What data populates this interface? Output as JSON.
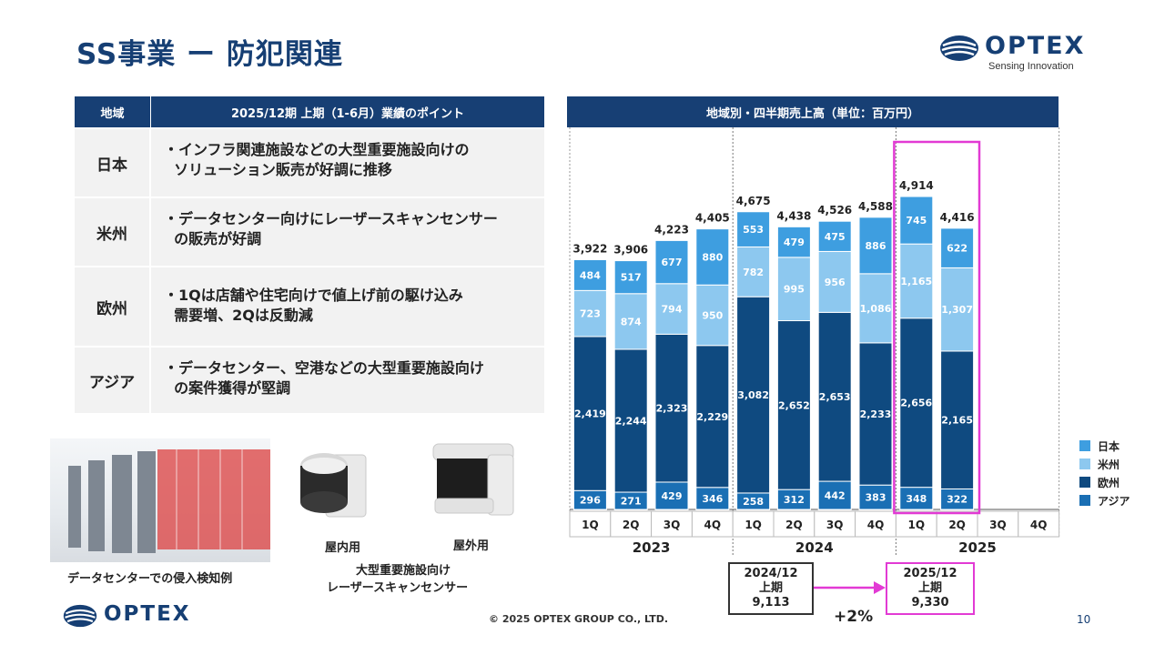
{
  "title": "SS事業 ー 防犯関連",
  "logo": {
    "word": "OPTEX",
    "tagline": "Sensing Innovation"
  },
  "table": {
    "header_region": "地域",
    "header_points": "2025/12期 上期（1-6月）業績のポイント",
    "rows": [
      {
        "region": "日本",
        "point": "・インフラ関連施設などの大型重要施設向けの\n  ソリューション販売が好調に推移"
      },
      {
        "region": "米州",
        "point": "・データセンター向けにレーザースキャンセンサー\n  の販売が好調"
      },
      {
        "region": "欧州",
        "point": "・1Qは店舗や住宅向けで値上げ前の駆け込み\n  需要増、2Qは反動減"
      },
      {
        "region": "アジア",
        "point": "・データセンター、空港などの大型重要施設向け\n  の案件獲得が堅調"
      }
    ]
  },
  "images": {
    "datacenter_caption": "データセンターでの侵入検知例",
    "indoor_caption": "屋内用",
    "outdoor_caption": "屋外用",
    "sensor_caption_1": "大型重要施設向け",
    "sensor_caption_2": "レーザースキャンセンサー"
  },
  "chart_title": "地域別・四半期売上高（単位：百万円）",
  "chart_data": {
    "type": "bar",
    "stacked": true,
    "categories": [
      "1Q",
      "2Q",
      "3Q",
      "4Q",
      "1Q",
      "2Q",
      "3Q",
      "4Q",
      "1Q",
      "2Q",
      "3Q",
      "4Q"
    ],
    "years": [
      "2023",
      "2024",
      "2025"
    ],
    "series": [
      {
        "name": "アジア",
        "color": "#1a6fb4",
        "values": [
          296,
          271,
          429,
          346,
          258,
          312,
          442,
          383,
          348,
          322,
          null,
          null
        ],
        "labels": [
          "296",
          "271",
          "429",
          "346",
          "258",
          "312",
          "442",
          "383",
          "348",
          "322",
          "",
          ""
        ]
      },
      {
        "name": "欧州",
        "color": "#0f4a80",
        "values": [
          2419,
          2244,
          2323,
          2229,
          3082,
          2652,
          2653,
          2233,
          2656,
          2165,
          null,
          null
        ],
        "labels": [
          "2,419",
          "2,244",
          "2,323",
          "2,229",
          "3,082",
          "2,652",
          "2,653",
          "2,233",
          "2,656",
          "2,165",
          "",
          ""
        ]
      },
      {
        "name": "米州",
        "color": "#8dc8ef",
        "values": [
          723,
          874,
          794,
          950,
          782,
          995,
          956,
          1086,
          1165,
          1307,
          null,
          null
        ],
        "labels": [
          "723",
          "874",
          "794",
          "950",
          "782",
          "995",
          "956",
          "1,086",
          "1,165",
          "1,307",
          "",
          ""
        ]
      },
      {
        "name": "日本",
        "color": "#3e9ee0",
        "values": [
          484,
          517,
          677,
          880,
          553,
          479,
          475,
          886,
          745,
          622,
          null,
          null
        ],
        "labels": [
          "484",
          "517",
          "677",
          "880",
          "553",
          "479",
          "475",
          "886",
          "745",
          "622",
          "",
          ""
        ]
      }
    ],
    "totals": [
      3922,
      3906,
      4223,
      4405,
      4675,
      4438,
      4526,
      4588,
      4914,
      4416,
      null,
      null
    ],
    "total_labels": [
      "3,922",
      "3,906",
      "4,223",
      "4,405",
      "4,675",
      "4,438",
      "4,526",
      "4,588",
      "4,914",
      "4,416",
      "",
      ""
    ],
    "legend": [
      "日本",
      "米州",
      "欧州",
      "アジア"
    ],
    "legend_position": "right",
    "highlight": "2025 1Q-2Q"
  },
  "comparison": {
    "prev": {
      "period": "2024/12",
      "half": "上期",
      "value": "9,113"
    },
    "curr": {
      "period": "2025/12",
      "half": "上期",
      "value": "9,330"
    },
    "growth": "+2%"
  },
  "footer": {
    "copyright": "© 2025 OPTEX GROUP CO., LTD.",
    "page": "10"
  }
}
